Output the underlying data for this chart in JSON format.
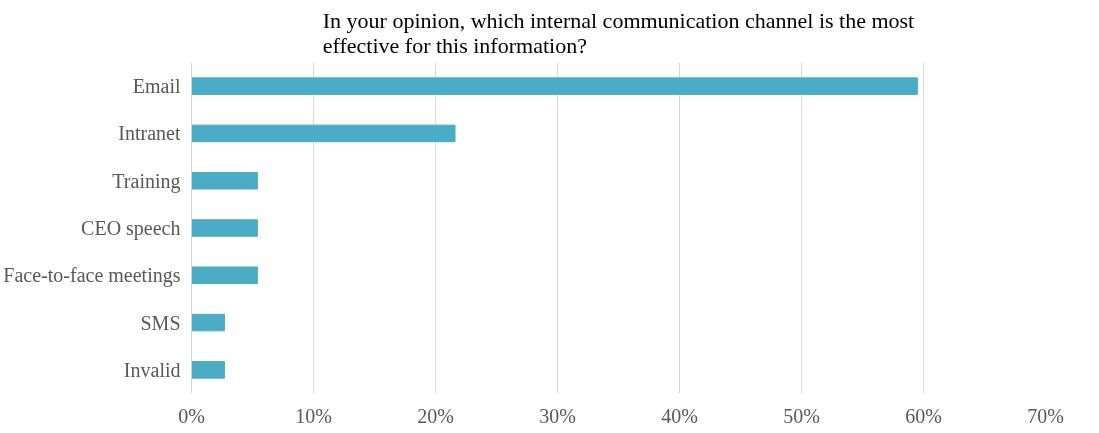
{
  "chart_data": {
    "type": "bar",
    "orientation": "horizontal",
    "title": "In your opinion, which internal communication channel is the most effective for this information?",
    "categories": [
      "Email",
      "Intranet",
      "Training",
      "CEO speech",
      "Face-to-face meetings",
      "SMS",
      "Invalid"
    ],
    "values": [
      59.5,
      21.6,
      5.4,
      5.4,
      5.4,
      2.7,
      2.7
    ],
    "color": "#4bacc6",
    "xlim": [
      0,
      70
    ],
    "xticks": [
      {
        "value": 0,
        "label": "0%"
      },
      {
        "value": 10,
        "label": "10%"
      },
      {
        "value": 20,
        "label": "20%"
      },
      {
        "value": 30,
        "label": "30%"
      },
      {
        "value": 40,
        "label": "40%"
      },
      {
        "value": 50,
        "label": "50%"
      },
      {
        "value": 60,
        "label": "60%"
      },
      {
        "value": 70,
        "label": "70%"
      }
    ],
    "grid": "x"
  }
}
